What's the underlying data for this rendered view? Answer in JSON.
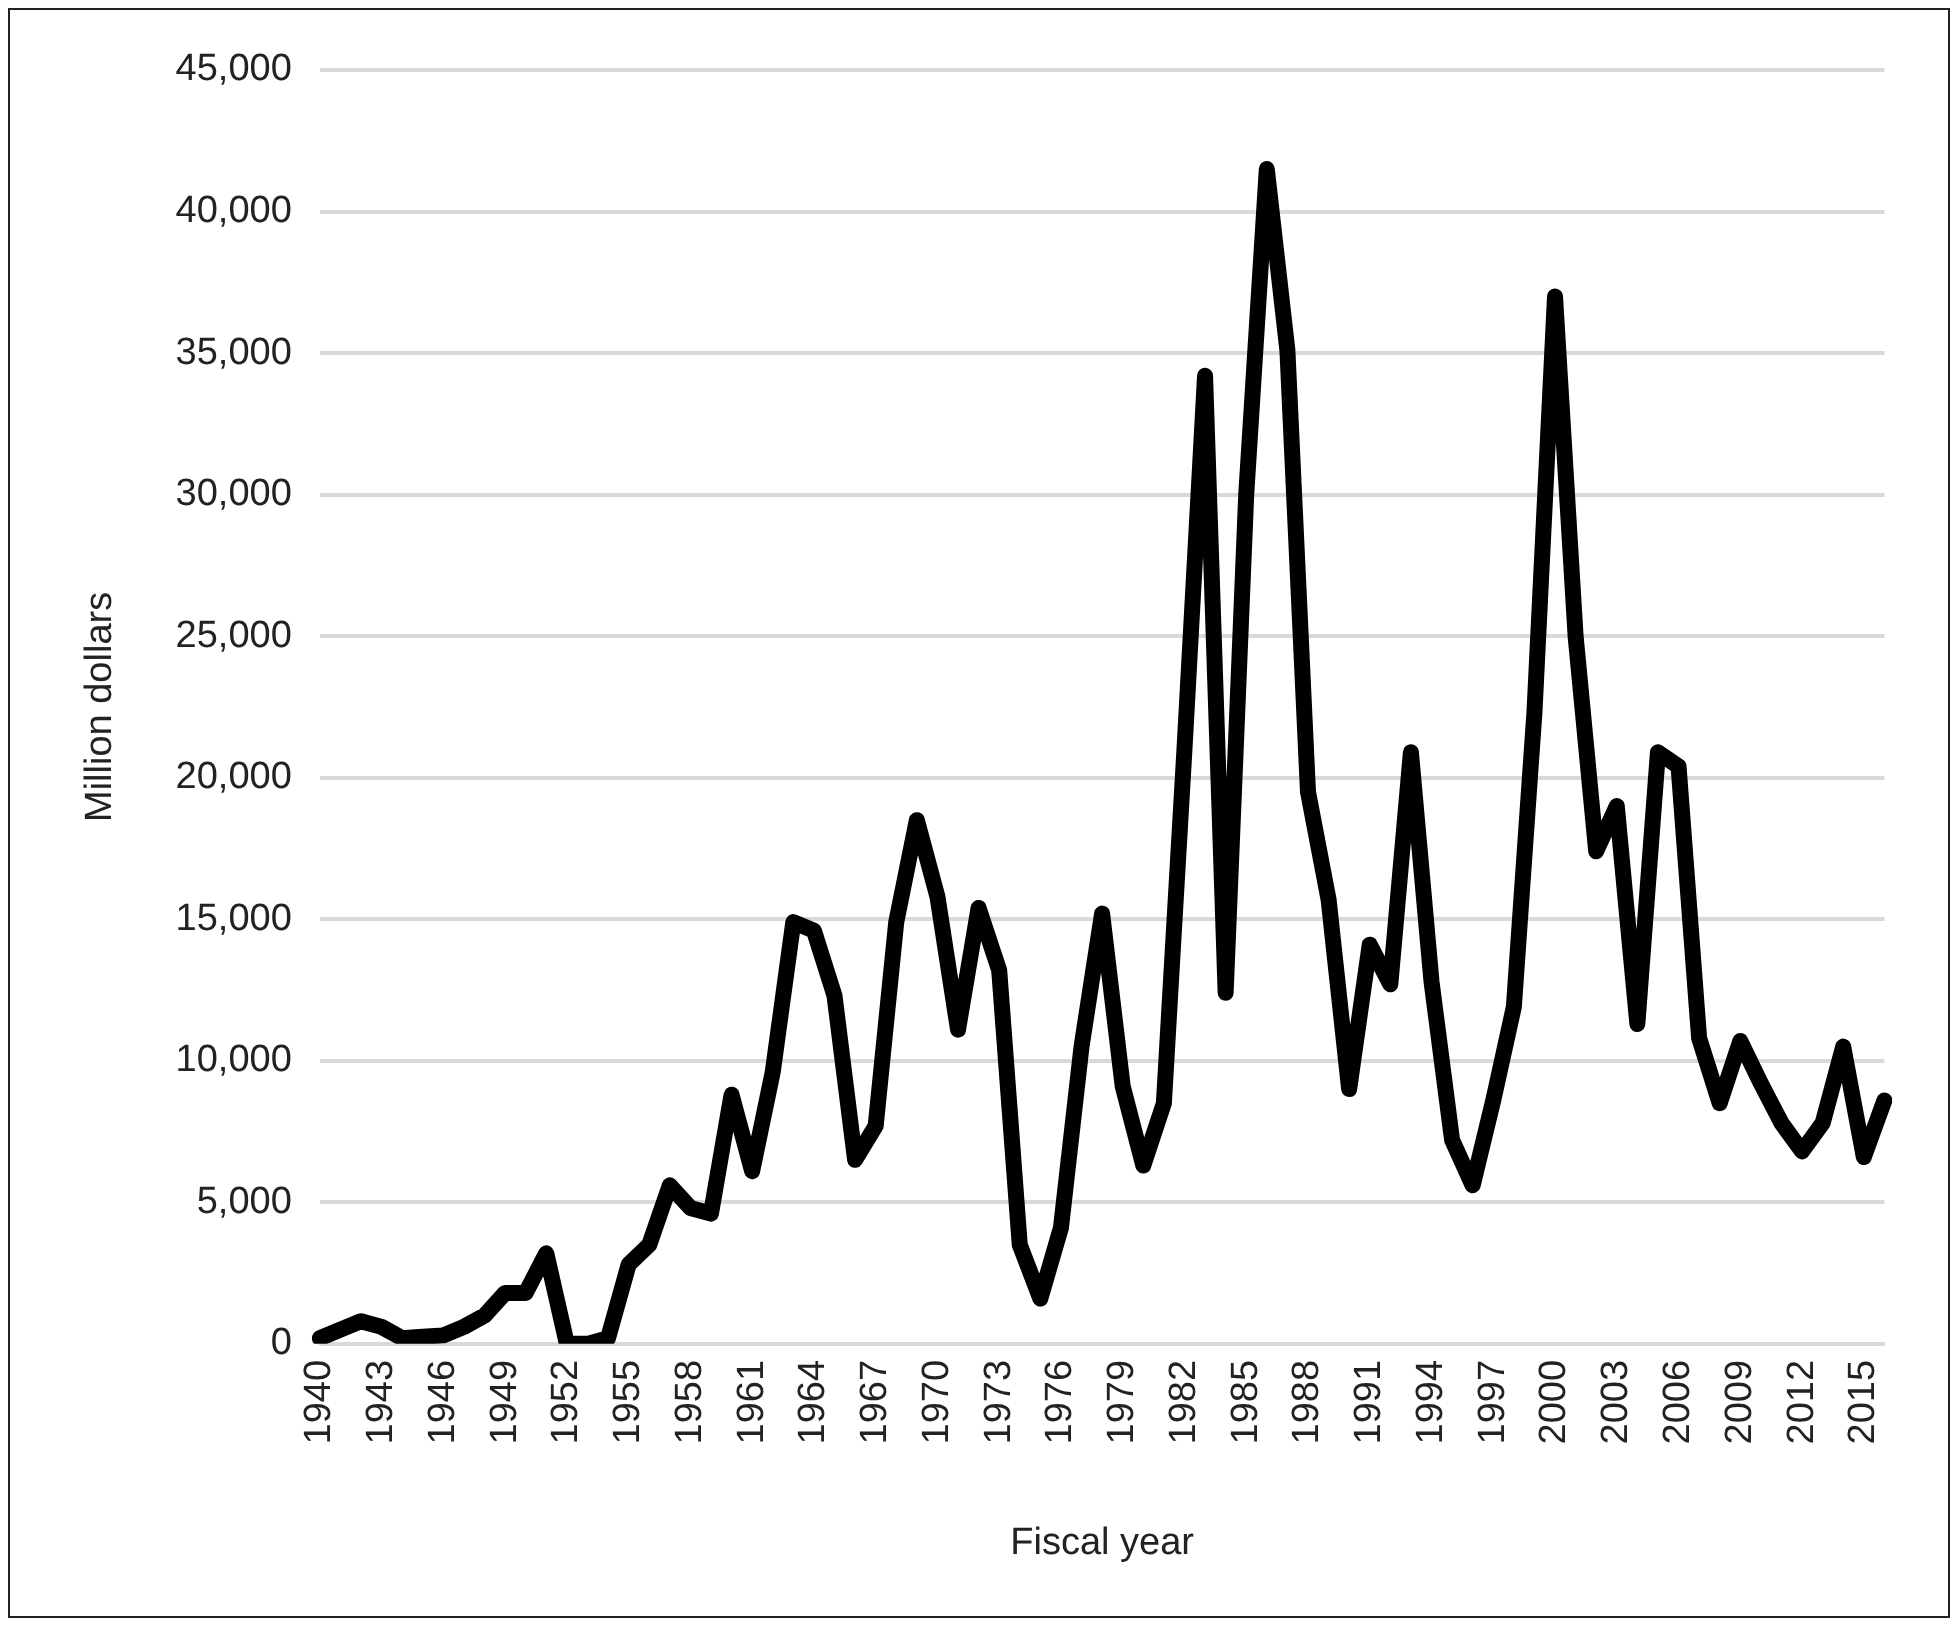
{
  "chart_data": {
    "type": "line",
    "xlabel": "Fiscal year",
    "ylabel": "Million dollars",
    "categories": [
      "1940",
      null,
      null,
      "1943",
      null,
      null,
      "1946",
      null,
      null,
      "1949",
      null,
      null,
      "1952",
      null,
      null,
      "1955",
      null,
      null,
      "1958",
      null,
      null,
      "1961",
      null,
      null,
      "1964",
      null,
      null,
      "1967",
      null,
      null,
      "1970",
      null,
      null,
      "1973",
      null,
      null,
      "1976",
      null,
      null,
      "1979",
      null,
      null,
      "1982",
      null,
      null,
      "1985",
      null,
      null,
      "1988",
      null,
      null,
      "1991",
      null,
      null,
      "1994",
      null,
      null,
      "1997",
      null,
      null,
      "2000",
      null,
      null,
      "2003",
      null,
      null,
      "2006",
      null,
      null,
      "2009",
      null,
      null,
      "2012",
      null,
      null,
      "2015",
      null
    ],
    "series": [
      {
        "color": "#000000",
        "values": [
          200,
          500,
          800,
          600,
          200,
          250,
          300,
          600,
          1000,
          1800,
          1800,
          3200,
          0,
          0,
          200,
          2800,
          3500,
          5600,
          4800,
          4600,
          8800,
          6100,
          9600,
          14900,
          14600,
          12300,
          6500,
          7700,
          14900,
          18500,
          15800,
          11100,
          15400,
          13200,
          3500,
          1600,
          4100,
          10500,
          15200,
          9100,
          6300,
          8500,
          21000,
          34200,
          12400,
          30000,
          41500,
          35100,
          19500,
          15700,
          9000,
          14100,
          12700,
          20900,
          12800,
          7200,
          5600,
          8600,
          11900,
          22300,
          37000,
          25000,
          17400,
          19000,
          11300,
          20900,
          20400,
          10800,
          8500,
          10700,
          9200,
          7800,
          6800,
          7800,
          10500,
          6600,
          8600
        ]
      }
    ],
    "ylim": [
      0,
      45000
    ],
    "yticks": [
      0,
      {
        "value": 5000,
        "label": "5,000"
      },
      {
        "value": 10000,
        "label": "10,000"
      },
      {
        "value": 15000,
        "label": "15,000"
      },
      {
        "value": 20000,
        "label": "20,000"
      },
      {
        "value": 25000,
        "label": "25,000"
      },
      {
        "value": 30000,
        "label": "30,000"
      },
      {
        "value": 35000,
        "label": "35,000"
      },
      {
        "value": 40000,
        "label": "40,000"
      },
      {
        "value": 45000,
        "label": "45,000"
      }
    ],
    "grid": "y",
    "legend": false,
    "marker": "none",
    "line_style": "solid"
  }
}
